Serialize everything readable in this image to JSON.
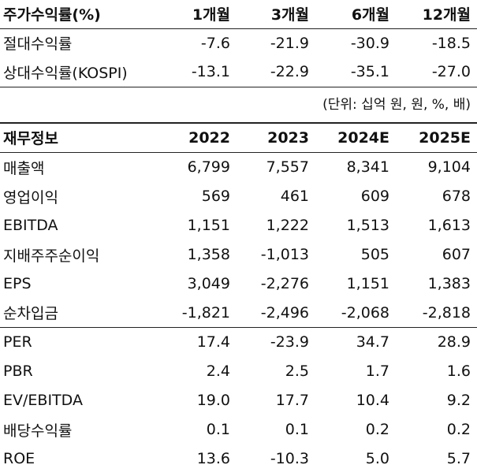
{
  "returns": {
    "header": [
      "주가수익률(%)",
      "1개월",
      "3개월",
      "6개월",
      "12개월"
    ],
    "rows": [
      {
        "label": "절대수익률",
        "values": [
          "-7.6",
          "-21.9",
          "-30.9",
          "-18.5"
        ]
      },
      {
        "label": "상대수익률(KOSPI)",
        "values": [
          "-13.1",
          "-22.9",
          "-35.1",
          "-27.0"
        ]
      }
    ]
  },
  "unit_note": "(단위: 십억 원, 원, %, 배)",
  "financials": {
    "header": [
      "재무정보",
      "2022",
      "2023",
      "2024E",
      "2025E"
    ],
    "rows": [
      {
        "label": "매출액",
        "values": [
          "6,799",
          "7,557",
          "8,341",
          "9,104"
        ]
      },
      {
        "label": "영업이익",
        "values": [
          "569",
          "461",
          "609",
          "678"
        ]
      },
      {
        "label": "EBITDA",
        "values": [
          "1,151",
          "1,222",
          "1,513",
          "1,613"
        ]
      },
      {
        "label": "지배주주순이익",
        "values": [
          "1,358",
          "-1,013",
          "505",
          "607"
        ]
      },
      {
        "label": "EPS",
        "values": [
          "3,049",
          "-2,276",
          "1,151",
          "1,383"
        ]
      },
      {
        "label": "순차입금",
        "values": [
          "-1,821",
          "-2,496",
          "-2,068",
          "-2,818"
        ]
      },
      {
        "label": "PER",
        "values": [
          "17.4",
          "-23.9",
          "34.7",
          "28.9"
        ]
      },
      {
        "label": "PBR",
        "values": [
          "2.4",
          "2.5",
          "1.7",
          "1.6"
        ]
      },
      {
        "label": "EV/EBITDA",
        "values": [
          "19.0",
          "17.7",
          "10.4",
          "9.2"
        ]
      },
      {
        "label": "배당수익률",
        "values": [
          "0.1",
          "0.1",
          "0.2",
          "0.2"
        ]
      },
      {
        "label": "ROE",
        "values": [
          "13.6",
          "-10.3",
          "5.0",
          "5.7"
        ]
      }
    ]
  }
}
